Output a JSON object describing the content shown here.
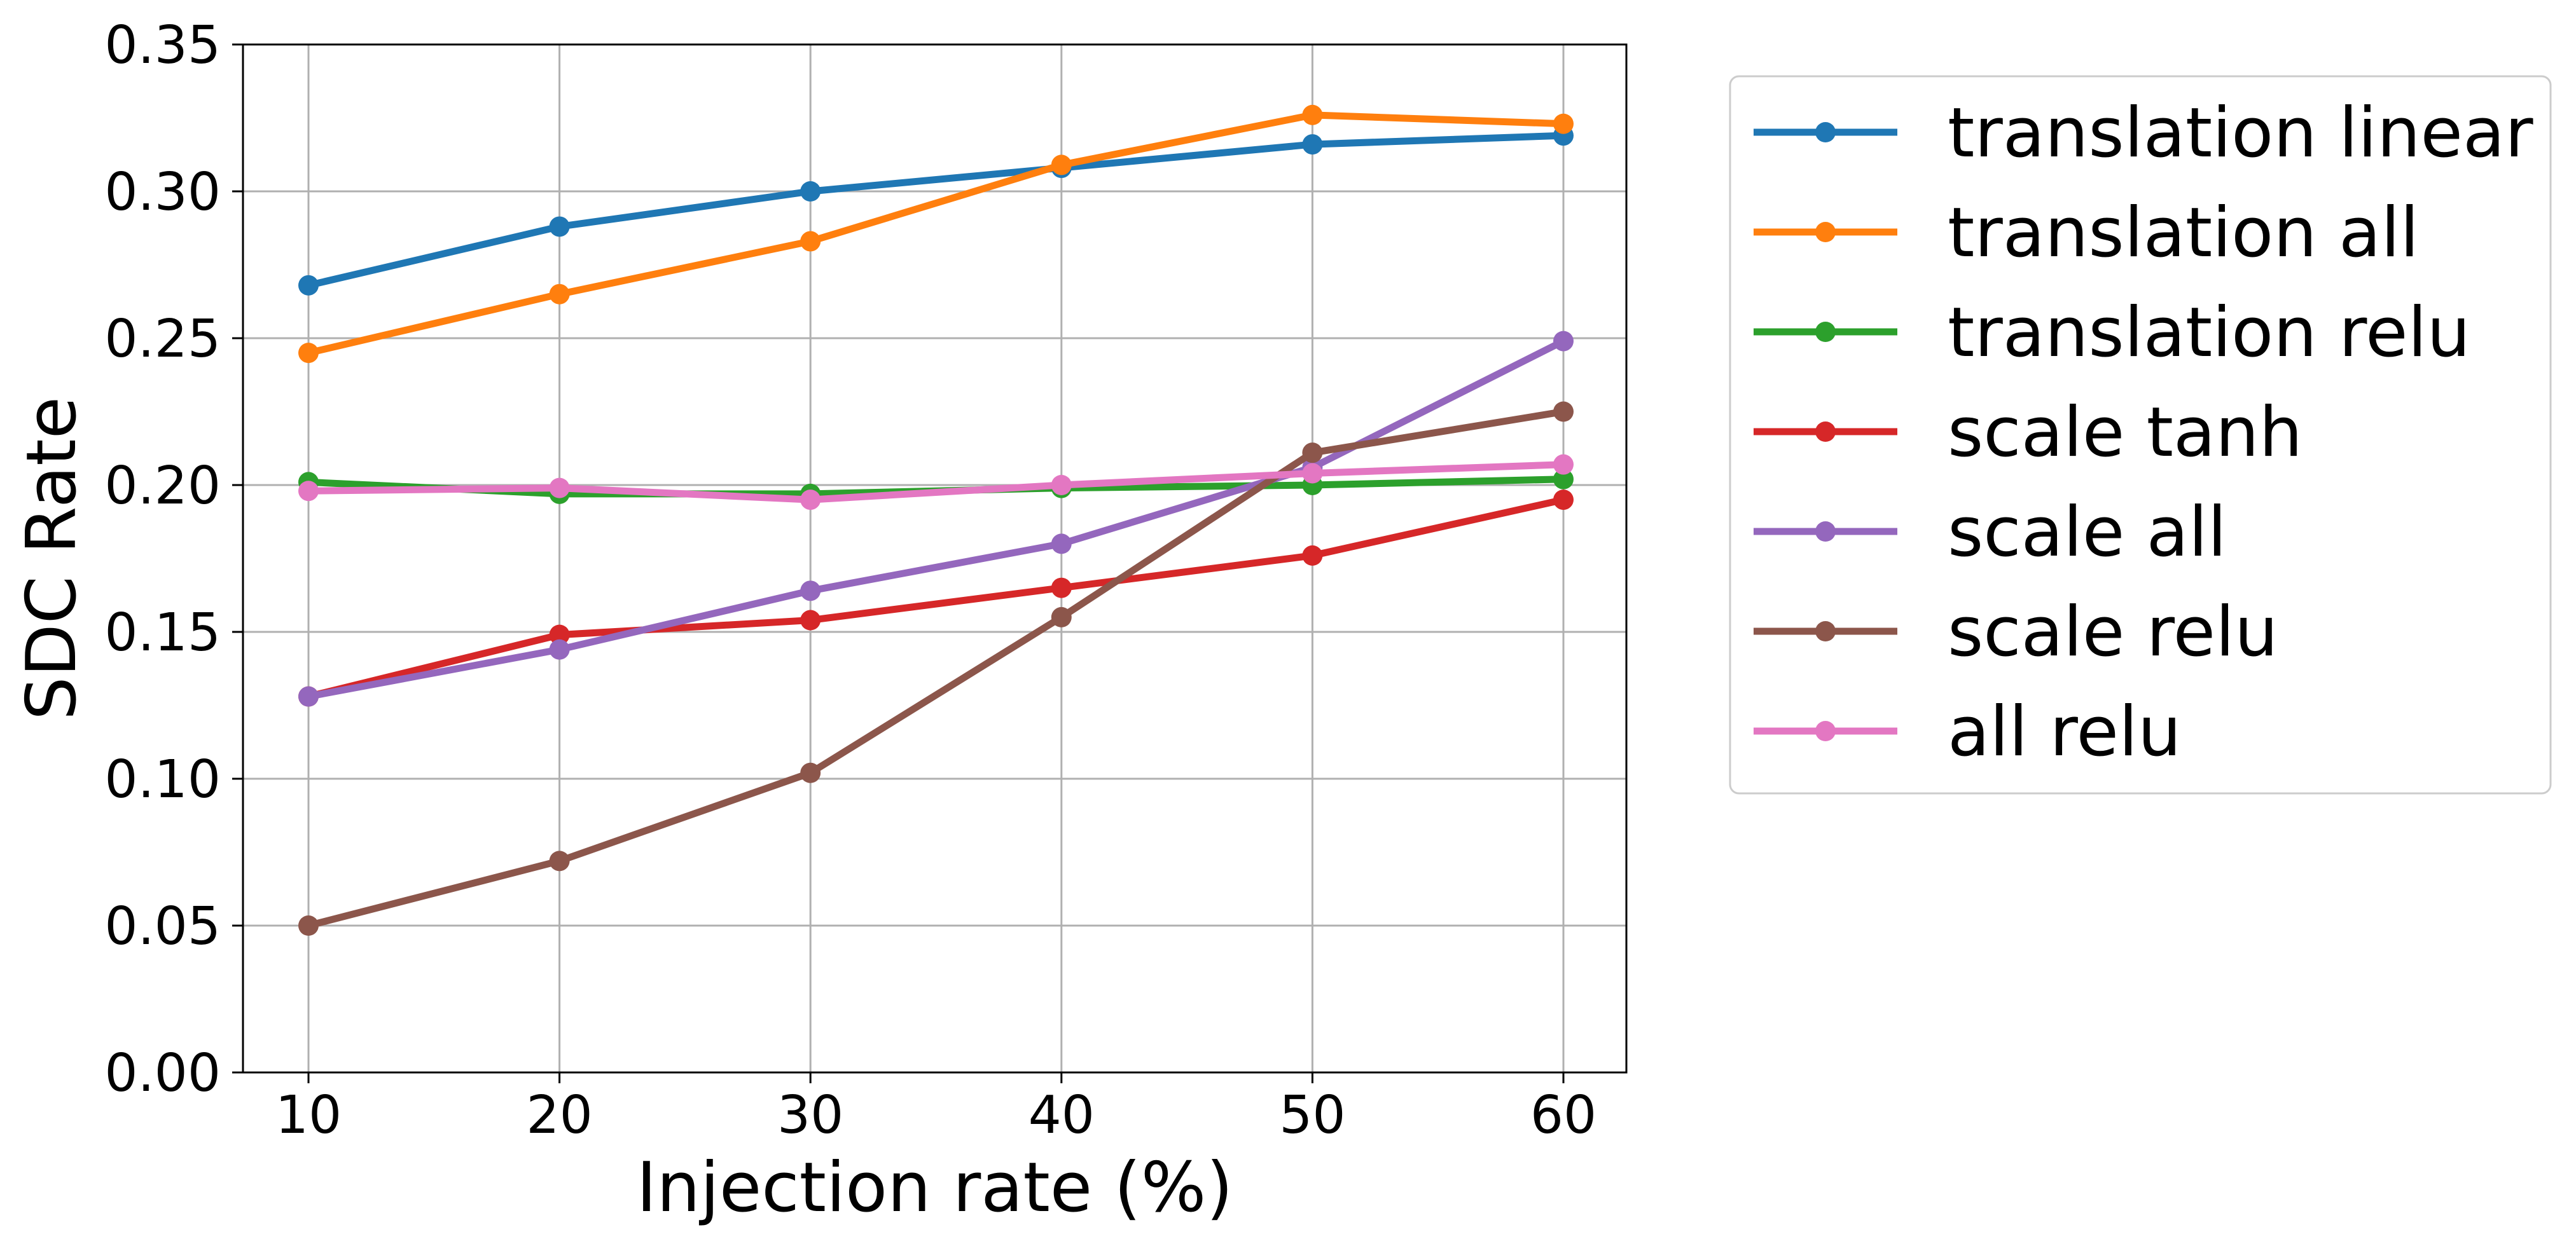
{
  "chart_data": {
    "type": "line",
    "title": "",
    "xlabel": "Injection rate (%)",
    "ylabel": "SDC Rate",
    "x": [
      10,
      20,
      30,
      40,
      50,
      60
    ],
    "xticks": [
      "10",
      "20",
      "30",
      "40",
      "50",
      "60"
    ],
    "yticks": [
      "0.00",
      "0.05",
      "0.10",
      "0.15",
      "0.20",
      "0.25",
      "0.30",
      "0.35"
    ],
    "ylim": [
      0,
      0.35
    ],
    "grid": true,
    "legend_position": "outside-right-top",
    "series": [
      {
        "name": "translation linear",
        "color": "#1f77b4",
        "values": [
          0.268,
          0.288,
          0.3,
          0.308,
          0.316,
          0.319
        ]
      },
      {
        "name": "translation all",
        "color": "#ff7f0e",
        "values": [
          0.245,
          0.265,
          0.283,
          0.309,
          0.326,
          0.323
        ]
      },
      {
        "name": "translation relu",
        "color": "#2ca02c",
        "values": [
          0.201,
          0.197,
          0.197,
          0.199,
          0.2,
          0.202
        ]
      },
      {
        "name": "scale tanh",
        "color": "#d62728",
        "values": [
          0.128,
          0.149,
          0.154,
          0.165,
          0.176,
          0.195
        ]
      },
      {
        "name": "scale all",
        "color": "#9467bd",
        "values": [
          0.128,
          0.144,
          0.164,
          0.18,
          0.206,
          0.249
        ]
      },
      {
        "name": "scale relu",
        "color": "#8c564b",
        "values": [
          0.05,
          0.072,
          0.102,
          0.155,
          0.211,
          0.225
        ]
      },
      {
        "name": "all relu",
        "color": "#e377c2",
        "values": [
          0.198,
          0.199,
          0.195,
          0.2,
          0.204,
          0.207
        ]
      }
    ]
  }
}
